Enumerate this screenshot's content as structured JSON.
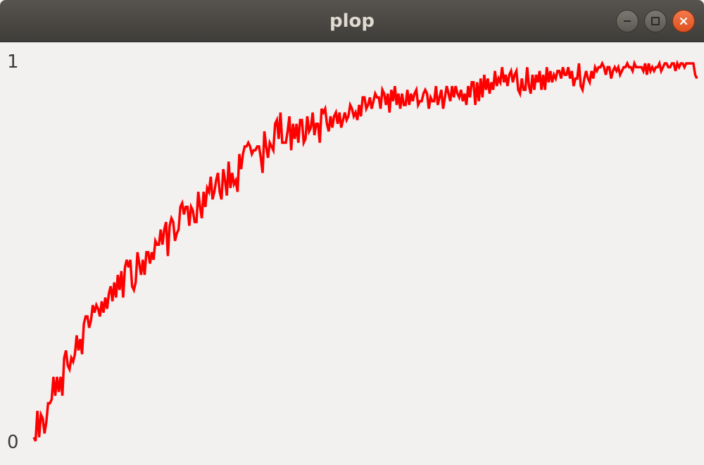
{
  "window": {
    "title": "plop",
    "buttons": {
      "minimize_icon": "minimize-icon",
      "maximize_icon": "maximize-icon",
      "close_icon": "close-icon"
    }
  },
  "chart_data": {
    "type": "line",
    "title": "",
    "xlabel": "",
    "ylabel": "",
    "ylim": [
      0,
      1
    ],
    "tick_labels": {
      "y_top": "1",
      "y_bottom": "0"
    },
    "color": "#ff0000",
    "grid": false,
    "series": [
      {
        "values": [
          0.01,
          0.0,
          0.08,
          0.01,
          0.07,
          0.06,
          0.02,
          0.05,
          0.1,
          0.1,
          0.11,
          0.17,
          0.12,
          0.17,
          0.13,
          0.17,
          0.12,
          0.22,
          0.24,
          0.2,
          0.19,
          0.22,
          0.21,
          0.23,
          0.28,
          0.24,
          0.27,
          0.23,
          0.31,
          0.33,
          0.33,
          0.3,
          0.32,
          0.36,
          0.34,
          0.36,
          0.35,
          0.33,
          0.37,
          0.34,
          0.38,
          0.35,
          0.39,
          0.41,
          0.37,
          0.42,
          0.38,
          0.44,
          0.4,
          0.45,
          0.38,
          0.46,
          0.48,
          0.46,
          0.48,
          0.41,
          0.4,
          0.42,
          0.5,
          0.47,
          0.44,
          0.48,
          0.44,
          0.5,
          0.5,
          0.47,
          0.5,
          0.48,
          0.53,
          0.52,
          0.52,
          0.56,
          0.52,
          0.56,
          0.58,
          0.49,
          0.57,
          0.59,
          0.58,
          0.53,
          0.55,
          0.56,
          0.62,
          0.63,
          0.6,
          0.62,
          0.62,
          0.57,
          0.62,
          0.61,
          0.58,
          0.58,
          0.66,
          0.62,
          0.59,
          0.66,
          0.62,
          0.67,
          0.66,
          0.7,
          0.64,
          0.66,
          0.69,
          0.71,
          0.66,
          0.64,
          0.72,
          0.69,
          0.65,
          0.74,
          0.67,
          0.71,
          0.68,
          0.69,
          0.66,
          0.76,
          0.72,
          0.76,
          0.78,
          0.78,
          0.79,
          0.78,
          0.76,
          0.77,
          0.77,
          0.78,
          0.78,
          0.75,
          0.71,
          0.82,
          0.78,
          0.75,
          0.79,
          0.78,
          0.77,
          0.84,
          0.85,
          0.8,
          0.87,
          0.79,
          0.79,
          0.79,
          0.82,
          0.86,
          0.77,
          0.84,
          0.8,
          0.84,
          0.79,
          0.85,
          0.85,
          0.79,
          0.8,
          0.86,
          0.82,
          0.83,
          0.87,
          0.81,
          0.84,
          0.84,
          0.79,
          0.88,
          0.87,
          0.88,
          0.84,
          0.82,
          0.86,
          0.83,
          0.86,
          0.87,
          0.84,
          0.87,
          0.83,
          0.85,
          0.87,
          0.85,
          0.86,
          0.89,
          0.88,
          0.86,
          0.87,
          0.85,
          0.89,
          0.86,
          0.91,
          0.91,
          0.88,
          0.89,
          0.91,
          0.88,
          0.9,
          0.92,
          0.91,
          0.91,
          0.88,
          0.93,
          0.92,
          0.89,
          0.92,
          0.87,
          0.93,
          0.9,
          0.94,
          0.89,
          0.92,
          0.88,
          0.92,
          0.89,
          0.89,
          0.93,
          0.89,
          0.92,
          0.9,
          0.92,
          0.93,
          0.89,
          0.9,
          0.9,
          0.92,
          0.93,
          0.92,
          0.88,
          0.91,
          0.9,
          0.9,
          0.94,
          0.89,
          0.91,
          0.93,
          0.88,
          0.91,
          0.94,
          0.92,
          0.9,
          0.94,
          0.91,
          0.94,
          0.92,
          0.91,
          0.93,
          0.9,
          0.92,
          0.89,
          0.94,
          0.91,
          0.95,
          0.95,
          0.89,
          0.95,
          0.9,
          0.96,
          0.91,
          0.97,
          0.93,
          0.96,
          0.92,
          0.95,
          0.93,
          0.98,
          0.94,
          0.96,
          0.95,
          0.99,
          0.95,
          0.97,
          0.94,
          0.97,
          0.98,
          0.95,
          0.97,
          0.98,
          0.93,
          0.92,
          0.96,
          0.93,
          0.93,
          0.99,
          0.94,
          0.92,
          0.97,
          0.93,
          0.97,
          0.95,
          0.98,
          0.93,
          0.97,
          0.93,
          0.99,
          0.95,
          0.98,
          0.95,
          0.97,
          0.96,
          0.98,
          0.98,
          0.96,
          0.99,
          0.97,
          0.97,
          0.99,
          0.96,
          0.98,
          0.94,
          0.96,
          0.96,
          1.0,
          0.94,
          0.93,
          0.96,
          0.98,
          0.96,
          0.95,
          0.98,
          0.96,
          0.99,
          0.98,
          0.99,
          0.99,
          1.0,
          0.99,
          0.97,
          0.99,
          0.99,
          0.96,
          0.98,
          0.99,
          0.98,
          0.99,
          0.97,
          0.98,
          0.99,
          0.99,
          1.0,
          0.99,
          0.99,
          0.98,
          1.0,
          0.99,
          0.99,
          0.99,
          0.99,
          0.98,
          1.0,
          0.97,
          1.0,
          0.98,
          0.99,
          0.98,
          0.99,
          0.99,
          1.0,
          0.98,
          0.99,
          1.0,
          1.0,
          0.99,
          0.99,
          1.0,
          1.0,
          0.98,
          1.0,
          0.99,
          1.0,
          1.0,
          0.99,
          1.0,
          1.0,
          1.0,
          1.0,
          1.0,
          0.97,
          0.96
        ]
      }
    ]
  }
}
